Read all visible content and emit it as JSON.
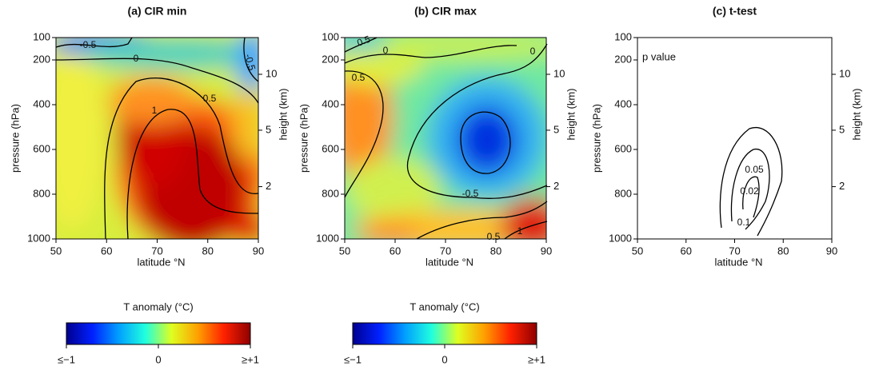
{
  "chart_data": [
    {
      "type": "contour",
      "title": "(a) CIR min",
      "xlabel": "latitude °N",
      "ylabel": "pressure (hPa)",
      "y2label": "height (km)",
      "xlim": [
        50,
        90
      ],
      "xticks": [
        50,
        60,
        70,
        80,
        90
      ],
      "ylim": [
        1000,
        100
      ],
      "yticks": [
        100,
        200,
        400,
        600,
        800,
        1000
      ],
      "y2lim": [
        0,
        17.3
      ],
      "y2ticks": [
        2,
        5,
        10
      ],
      "filled": true,
      "contour_levels": [
        -0.5,
        0,
        0.5,
        1,
        -0.5
      ]
    },
    {
      "type": "contour",
      "title": "(b) CIR max",
      "xlabel": "latitude °N",
      "ylabel": "pressure (hPa)",
      "y2label": "height (km)",
      "xlim": [
        50,
        90
      ],
      "xticks": [
        50,
        60,
        70,
        80,
        90
      ],
      "ylim": [
        1000,
        100
      ],
      "yticks": [
        100,
        200,
        400,
        600,
        800,
        1000
      ],
      "y2lim": [
        0,
        17.3
      ],
      "y2ticks": [
        2,
        5,
        10
      ],
      "filled": true,
      "contour_levels": [
        0.5,
        0,
        0,
        0.5,
        -0.5,
        0.5,
        1
      ]
    },
    {
      "type": "contour",
      "title": "(c) t-test",
      "xlabel": "latitude °N",
      "ylabel": "pressure (hPa)",
      "y2label": "height (km)",
      "xlim": [
        50,
        90
      ],
      "xticks": [
        50,
        60,
        70,
        80,
        90
      ],
      "ylim": [
        1000,
        100
      ],
      "yticks": [
        100,
        200,
        400,
        600,
        800,
        1000
      ],
      "y2lim": [
        0,
        17.3
      ],
      "y2ticks": [
        2,
        5,
        10
      ],
      "filled": false,
      "annotation": "p value",
      "contour_levels": [
        0.05,
        0.02,
        0.1
      ]
    }
  ],
  "colorbars": [
    {
      "title": "T anomaly (°C)",
      "lim": [
        -1,
        1
      ],
      "ticks": [
        {
          "value": -1,
          "label": "≤−1"
        },
        0,
        {
          "value": 1,
          "label": "≥+1"
        }
      ],
      "colors": [
        "#00008f",
        "#0020ff",
        "#00a0ff",
        "#20ffdf",
        "#dfff20",
        "#ffa000",
        "#ff2000",
        "#8f0000"
      ]
    },
    {
      "title": "T anomaly (°C)",
      "lim": [
        -1,
        1
      ],
      "ticks": [
        {
          "value": -1,
          "label": "≤−1"
        },
        0,
        {
          "value": 1,
          "label": "≥+1"
        }
      ],
      "colors": [
        "#00008f",
        "#0020ff",
        "#00a0ff",
        "#20ffdf",
        "#dfff20",
        "#ffa000",
        "#ff2000",
        "#8f0000"
      ]
    }
  ]
}
